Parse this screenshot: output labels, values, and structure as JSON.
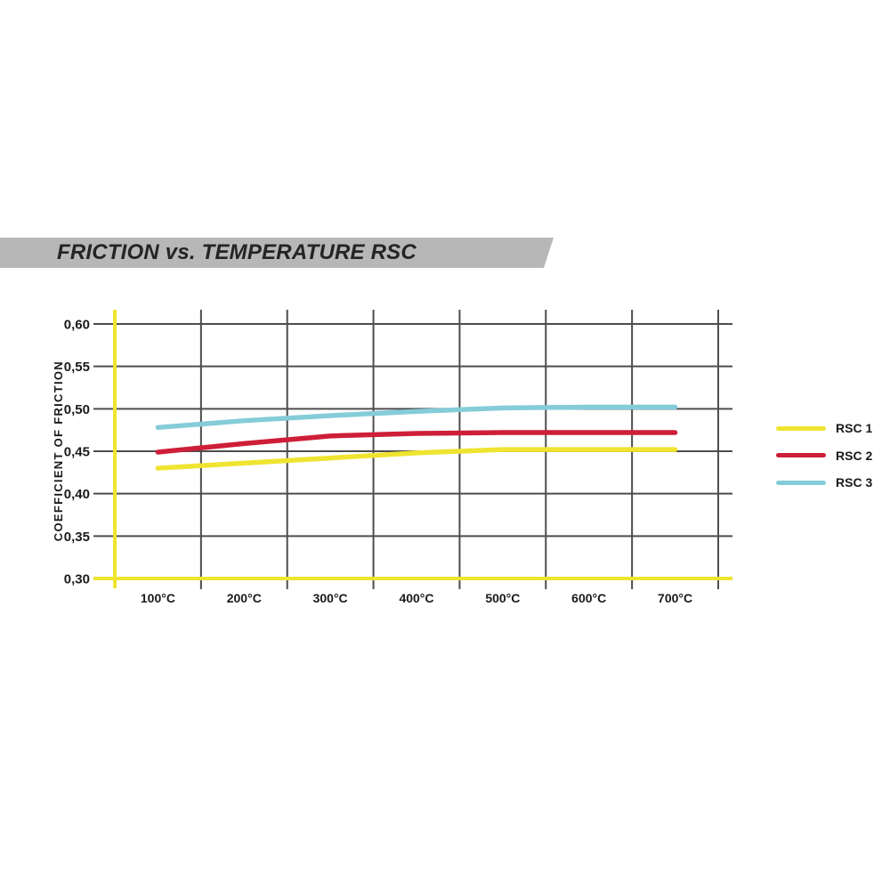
{
  "banner": {
    "title": "FRICTION vs. TEMPERATURE RSC",
    "background": "#b7b7b7",
    "text_color": "#242424"
  },
  "chart_data": {
    "type": "line",
    "title": "FRICTION vs. TEMPERATURE RSC",
    "xlabel": "",
    "ylabel": "COEFFICIENT OF FRICTION",
    "x_tick_labels": [
      "100°C",
      "200°C",
      "300°C",
      "400°C",
      "500°C",
      "600°C",
      "700°C"
    ],
    "x_values_celsius": [
      100,
      200,
      300,
      400,
      500,
      600,
      700
    ],
    "y_tick_labels": [
      "0,60",
      "0,55",
      "0,50",
      "0,45",
      "0,40",
      "0,35",
      "0,30"
    ],
    "y_tick_values": [
      0.6,
      0.55,
      0.5,
      0.45,
      0.4,
      0.35,
      0.3
    ],
    "ylim": [
      0.3,
      0.6
    ],
    "grid": true,
    "legend_position": "right",
    "grid_color": "#4d4d4d",
    "axis_color": "#efe431",
    "series": [
      {
        "name": "RSC 1",
        "color": "#efe431",
        "values": [
          0.43,
          0.436,
          0.442,
          0.448,
          0.452,
          0.452,
          0.452
        ]
      },
      {
        "name": "RSC 2",
        "color": "#ce1e38",
        "values": [
          0.449,
          0.459,
          0.468,
          0.471,
          0.472,
          0.472,
          0.472
        ]
      },
      {
        "name": "RSC 3",
        "color": "#85ccd9",
        "values": [
          0.478,
          0.486,
          0.492,
          0.497,
          0.501,
          0.502,
          0.502
        ]
      }
    ]
  }
}
